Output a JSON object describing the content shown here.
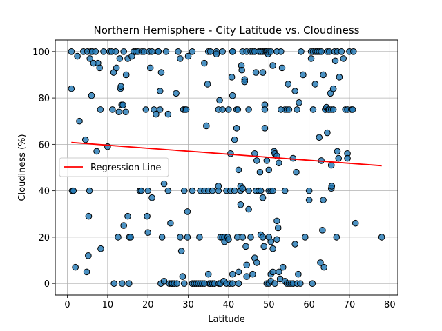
{
  "chart_data": {
    "type": "scatter",
    "title": "Northern Hemisphere - City Latitude vs. Cloudiness",
    "xlabel": "Latitude",
    "ylabel": "Cloudiness (%)",
    "xlim": [
      -3,
      82
    ],
    "ylim": [
      -5,
      105
    ],
    "xticks": [
      0,
      10,
      20,
      30,
      40,
      50,
      60,
      70,
      80
    ],
    "yticks": [
      0,
      20,
      40,
      60,
      80,
      100
    ],
    "grid": true,
    "legend": {
      "placement": "center-left",
      "entries": [
        "Regression Line"
      ]
    },
    "colors": {
      "points": "#1f77b4",
      "point_edge": "#000000",
      "regression": "#ff0000"
    },
    "regression": {
      "x": [
        1,
        78
      ],
      "y": [
        60.8,
        50.8
      ]
    },
    "points": [
      [
        1,
        100
      ],
      [
        1,
        84
      ],
      [
        1.2,
        40
      ],
      [
        1.5,
        40
      ],
      [
        2,
        7
      ],
      [
        2.5,
        98
      ],
      [
        3,
        70
      ],
      [
        4,
        100
      ],
      [
        4.5,
        62
      ],
      [
        4.8,
        5
      ],
      [
        5,
        100
      ],
      [
        5.2,
        12
      ],
      [
        5.3,
        29
      ],
      [
        5.5,
        40
      ],
      [
        5.6,
        97
      ],
      [
        5.8,
        100
      ],
      [
        6,
        81
      ],
      [
        6.2,
        100
      ],
      [
        6.5,
        95
      ],
      [
        7,
        100
      ],
      [
        7.3,
        57
      ],
      [
        7.6,
        95
      ],
      [
        8,
        93
      ],
      [
        8.2,
        75
      ],
      [
        8.3,
        15
      ],
      [
        9,
        100
      ],
      [
        10,
        59
      ],
      [
        10.5,
        100
      ],
      [
        11,
        100
      ],
      [
        11.2,
        75
      ],
      [
        11.5,
        91
      ],
      [
        11.6,
        0
      ],
      [
        12,
        100
      ],
      [
        12.2,
        93
      ],
      [
        12.6,
        20
      ],
      [
        12.8,
        74
      ],
      [
        13,
        97
      ],
      [
        13.2,
        84
      ],
      [
        13.3,
        85
      ],
      [
        13.5,
        77
      ],
      [
        13.6,
        0
      ],
      [
        13.8,
        77
      ],
      [
        14,
        100
      ],
      [
        14,
        25
      ],
      [
        14.5,
        74
      ],
      [
        14.6,
        90
      ],
      [
        15,
        97
      ],
      [
        15,
        29
      ],
      [
        15.3,
        0
      ],
      [
        15.4,
        20
      ],
      [
        15.7,
        20
      ],
      [
        16,
        98
      ],
      [
        16.5,
        100
      ],
      [
        17,
        100
      ],
      [
        17.5,
        100
      ],
      [
        18,
        40
      ],
      [
        18.3,
        40
      ],
      [
        18.5,
        100
      ],
      [
        19,
        100
      ],
      [
        19.5,
        75
      ],
      [
        19.8,
        29
      ],
      [
        20,
        22
      ],
      [
        20,
        40
      ],
      [
        20.3,
        100
      ],
      [
        20.6,
        93
      ],
      [
        21,
        100
      ],
      [
        21,
        37
      ],
      [
        21.5,
        75
      ],
      [
        22,
        73
      ],
      [
        22.5,
        100
      ],
      [
        22.6,
        100
      ],
      [
        23,
        75
      ],
      [
        23,
        83
      ],
      [
        23.3,
        91
      ],
      [
        23.5,
        20
      ],
      [
        23.2,
        0
      ],
      [
        24,
        43
      ],
      [
        24,
        1
      ],
      [
        24.5,
        100
      ],
      [
        25,
        73
      ],
      [
        25,
        40
      ],
      [
        25.3,
        0
      ],
      [
        25.6,
        26
      ],
      [
        25.8,
        0
      ],
      [
        26,
        0
      ],
      [
        26.5,
        0
      ],
      [
        27,
        82
      ],
      [
        27.2,
        0
      ],
      [
        27.5,
        100
      ],
      [
        28,
        97
      ],
      [
        28,
        20
      ],
      [
        28.3,
        14
      ],
      [
        28.6,
        3
      ],
      [
        28.8,
        75
      ],
      [
        29,
        40
      ],
      [
        29,
        0
      ],
      [
        29.2,
        75
      ],
      [
        29.5,
        75
      ],
      [
        29.8,
        31
      ],
      [
        29.8,
        20
      ],
      [
        30,
        98
      ],
      [
        31,
        100
      ],
      [
        31,
        40
      ],
      [
        31,
        0
      ],
      [
        31.5,
        0
      ],
      [
        32,
        0
      ],
      [
        32.5,
        0
      ],
      [
        32.8,
        20
      ],
      [
        33,
        40
      ],
      [
        33,
        0
      ],
      [
        33.5,
        0
      ],
      [
        34,
        95
      ],
      [
        34,
        40
      ],
      [
        34,
        0
      ],
      [
        34.5,
        68
      ],
      [
        34.8,
        86
      ],
      [
        35,
        100
      ],
      [
        35,
        40
      ],
      [
        35,
        4
      ],
      [
        35.2,
        0
      ],
      [
        35.5,
        0
      ],
      [
        35.5,
        100
      ],
      [
        36,
        40
      ],
      [
        36,
        0
      ],
      [
        36.5,
        0
      ],
      [
        37,
        100
      ],
      [
        37,
        99
      ],
      [
        37.5,
        75
      ],
      [
        37.5,
        42
      ],
      [
        37.5,
        40
      ],
      [
        37.8,
        79
      ],
      [
        37.6,
        0
      ],
      [
        38,
        20
      ],
      [
        38,
        0
      ],
      [
        38.5,
        100
      ],
      [
        38.5,
        75
      ],
      [
        38.5,
        20
      ],
      [
        38.8,
        1
      ],
      [
        39,
        20
      ],
      [
        39,
        18
      ],
      [
        39.5,
        40
      ],
      [
        39.8,
        20
      ],
      [
        39.5,
        0
      ],
      [
        40,
        75
      ],
      [
        40,
        19
      ],
      [
        40.3,
        0
      ],
      [
        40.5,
        56
      ],
      [
        40.5,
        40
      ],
      [
        40.8,
        89
      ],
      [
        41,
        100
      ],
      [
        41,
        100
      ],
      [
        41,
        81
      ],
      [
        41,
        4
      ],
      [
        41,
        0
      ],
      [
        41.5,
        62
      ],
      [
        41.5,
        40
      ],
      [
        42,
        75
      ],
      [
        42,
        67
      ],
      [
        42.3,
        75
      ],
      [
        42.2,
        20
      ],
      [
        42.5,
        49
      ],
      [
        42.5,
        5
      ],
      [
        42.5,
        0
      ],
      [
        43,
        40
      ],
      [
        43,
        34
      ],
      [
        43,
        42
      ],
      [
        43.2,
        94
      ],
      [
        43.3,
        92
      ],
      [
        43.5,
        100
      ],
      [
        43.5,
        41
      ],
      [
        43.5,
        20
      ],
      [
        44,
        88
      ],
      [
        44,
        87
      ],
      [
        44.3,
        16
      ],
      [
        44.5,
        100
      ],
      [
        44.5,
        8
      ],
      [
        44.5,
        3
      ],
      [
        45,
        75
      ],
      [
        45,
        40
      ],
      [
        45,
        32
      ],
      [
        45.5,
        100
      ],
      [
        45.5,
        20
      ],
      [
        46,
        100
      ],
      [
        46,
        4
      ],
      [
        46.5,
        100
      ],
      [
        46.5,
        56
      ],
      [
        46.5,
        11
      ],
      [
        46.8,
        91
      ],
      [
        46.8,
        40
      ],
      [
        47,
        53
      ],
      [
        47,
        9
      ],
      [
        47.5,
        100
      ],
      [
        47.5,
        40
      ],
      [
        47.8,
        48
      ],
      [
        48,
        100
      ],
      [
        48,
        40
      ],
      [
        48,
        21
      ],
      [
        48.5,
        100
      ],
      [
        48.5,
        91
      ],
      [
        48.5,
        37
      ],
      [
        48.5,
        20
      ],
      [
        48.8,
        16
      ],
      [
        49,
        100
      ],
      [
        49,
        77
      ],
      [
        49,
        75
      ],
      [
        49,
        67
      ],
      [
        49.3,
        100
      ],
      [
        49.5,
        100
      ],
      [
        49.5,
        53
      ],
      [
        49.5,
        0
      ],
      [
        49.8,
        99
      ],
      [
        50,
        100
      ],
      [
        50,
        49
      ],
      [
        50,
        40
      ],
      [
        50,
        20
      ],
      [
        50,
        0
      ],
      [
        50.5,
        100
      ],
      [
        50.5,
        40
      ],
      [
        50.5,
        18
      ],
      [
        50.5,
        4
      ],
      [
        50.5,
        1
      ],
      [
        51,
        94
      ],
      [
        51,
        40
      ],
      [
        51,
        15
      ],
      [
        51,
        5
      ],
      [
        51.3,
        57
      ],
      [
        51.5,
        56
      ],
      [
        51.5,
        0
      ],
      [
        52,
        100
      ],
      [
        52,
        55
      ],
      [
        52,
        27
      ],
      [
        52,
        19
      ],
      [
        52.3,
        24
      ],
      [
        52.5,
        52
      ],
      [
        52.5,
        5
      ],
      [
        52.8,
        2
      ],
      [
        53,
        100
      ],
      [
        53,
        75
      ],
      [
        53.3,
        93
      ],
      [
        53.5,
        7
      ],
      [
        54,
        75
      ],
      [
        54,
        40
      ],
      [
        54,
        1
      ],
      [
        54.5,
        75
      ],
      [
        54.5,
        0
      ],
      [
        54.8,
        86
      ],
      [
        55,
        75
      ],
      [
        55,
        0
      ],
      [
        55.5,
        0
      ],
      [
        56,
        54
      ],
      [
        56,
        0
      ],
      [
        56.5,
        83
      ],
      [
        56.5,
        17
      ],
      [
        56.8,
        48
      ],
      [
        57,
        75
      ],
      [
        57,
        0
      ],
      [
        57.3,
        4
      ],
      [
        57.5,
        78
      ],
      [
        57.8,
        0
      ],
      [
        58,
        100
      ],
      [
        58.5,
        90
      ],
      [
        59,
        20
      ],
      [
        60,
        40
      ],
      [
        60,
        36
      ],
      [
        60.5,
        97
      ],
      [
        60.5,
        100
      ],
      [
        60.8,
        0
      ],
      [
        61,
        75
      ],
      [
        61,
        100
      ],
      [
        61.5,
        86
      ],
      [
        61.6,
        100
      ],
      [
        62,
        100
      ],
      [
        62.5,
        100
      ],
      [
        62.5,
        63
      ],
      [
        62.8,
        9
      ],
      [
        63,
        100
      ],
      [
        63,
        53
      ],
      [
        63.3,
        23
      ],
      [
        63.5,
        90
      ],
      [
        63.5,
        36
      ],
      [
        63.7,
        7
      ],
      [
        64,
        75
      ],
      [
        64,
        75
      ],
      [
        64.3,
        76
      ],
      [
        64.5,
        65
      ],
      [
        64.5,
        100
      ],
      [
        64.8,
        75
      ],
      [
        65,
        100
      ],
      [
        65,
        75
      ],
      [
        65.3,
        82
      ],
      [
        65.5,
        75
      ],
      [
        65.5,
        51
      ],
      [
        65.5,
        41
      ],
      [
        65.6,
        42
      ],
      [
        66,
        84
      ],
      [
        66,
        75
      ],
      [
        66.3,
        100
      ],
      [
        66.5,
        96
      ],
      [
        66.8,
        20
      ],
      [
        67,
        100
      ],
      [
        67,
        57
      ],
      [
        67.3,
        54
      ],
      [
        67.5,
        89
      ],
      [
        68,
        100
      ],
      [
        68.5,
        97
      ],
      [
        69,
        75
      ],
      [
        69.5,
        75
      ],
      [
        69.5,
        56
      ],
      [
        69.5,
        54
      ],
      [
        70,
        100
      ],
      [
        70.5,
        75
      ],
      [
        70.8,
        75
      ],
      [
        71,
        100
      ],
      [
        71.5,
        26
      ],
      [
        78,
        20
      ]
    ]
  }
}
